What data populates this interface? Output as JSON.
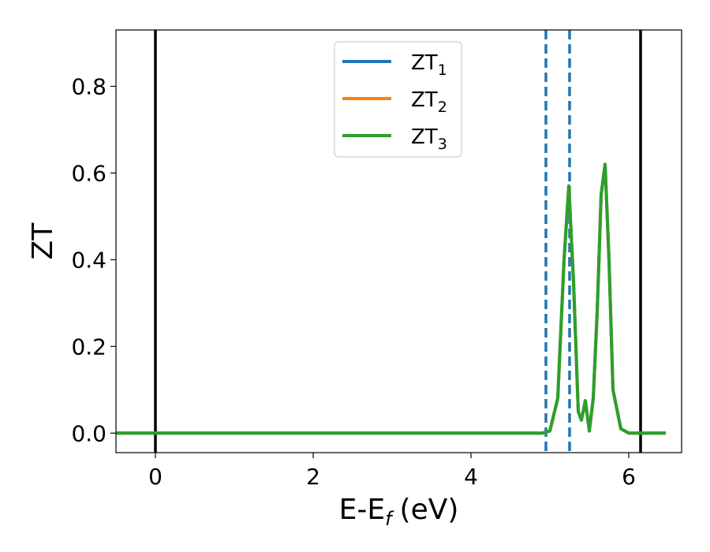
{
  "chart_data": {
    "type": "line",
    "xlabel": "E-E",
    "xlabel_sub": "f",
    "xlabel_unit": "(eV)",
    "ylabel": "ZT",
    "xlim": [
      -0.5,
      6.67
    ],
    "ylim": [
      -0.045,
      0.93
    ],
    "xticks": [
      0,
      2,
      4,
      6
    ],
    "xtick_labels": [
      "0",
      "2",
      "4",
      "6"
    ],
    "yticks": [
      0.0,
      0.2,
      0.4,
      0.6,
      0.8
    ],
    "ytick_labels": [
      "0.0",
      "0.2",
      "0.4",
      "0.6",
      "0.8"
    ],
    "grid": false,
    "legend_position": "top-center",
    "vertical_lines": [
      {
        "x": 0.0,
        "style": "solid",
        "color": "#000000"
      },
      {
        "x": 6.15,
        "style": "solid",
        "color": "#000000"
      },
      {
        "x": 4.95,
        "style": "dashed",
        "color": "#1f77b4"
      },
      {
        "x": 5.25,
        "style": "dashed",
        "color": "#1f77b4"
      }
    ],
    "series": [
      {
        "name": "ZT",
        "name_sub": "1",
        "color": "#1f77b4",
        "x": [
          -0.5,
          4.9,
          5.0,
          5.1,
          5.18,
          5.24,
          5.3,
          5.36,
          5.4,
          5.45,
          5.5,
          5.55,
          5.6,
          5.65,
          5.7,
          5.75,
          5.8,
          5.9,
          6.0,
          6.47
        ],
        "y": [
          0.0,
          0.0,
          0.005,
          0.08,
          0.4,
          0.57,
          0.35,
          0.05,
          0.03,
          0.075,
          0.005,
          0.08,
          0.28,
          0.55,
          0.62,
          0.4,
          0.1,
          0.01,
          0.0,
          0.0
        ]
      },
      {
        "name": "ZT",
        "name_sub": "2",
        "color": "#ff7f0e",
        "x": [
          -0.5,
          4.9,
          5.0,
          5.1,
          5.18,
          5.24,
          5.3,
          5.36,
          5.4,
          5.45,
          5.5,
          5.55,
          5.6,
          5.65,
          5.7,
          5.75,
          5.8,
          5.9,
          6.0,
          6.47
        ],
        "y": [
          0.0,
          0.0,
          0.005,
          0.08,
          0.4,
          0.57,
          0.35,
          0.05,
          0.03,
          0.075,
          0.005,
          0.08,
          0.28,
          0.55,
          0.62,
          0.4,
          0.1,
          0.01,
          0.0,
          0.0
        ]
      },
      {
        "name": "ZT",
        "name_sub": "3",
        "color": "#2ca02c",
        "x": [
          -0.5,
          4.9,
          5.0,
          5.1,
          5.18,
          5.24,
          5.3,
          5.36,
          5.4,
          5.45,
          5.5,
          5.55,
          5.6,
          5.65,
          5.7,
          5.75,
          5.8,
          5.9,
          6.0,
          6.47
        ],
        "y": [
          0.0,
          0.0,
          0.005,
          0.08,
          0.4,
          0.57,
          0.35,
          0.05,
          0.03,
          0.075,
          0.005,
          0.08,
          0.28,
          0.55,
          0.62,
          0.4,
          0.1,
          0.01,
          0.0,
          0.0
        ]
      }
    ]
  }
}
